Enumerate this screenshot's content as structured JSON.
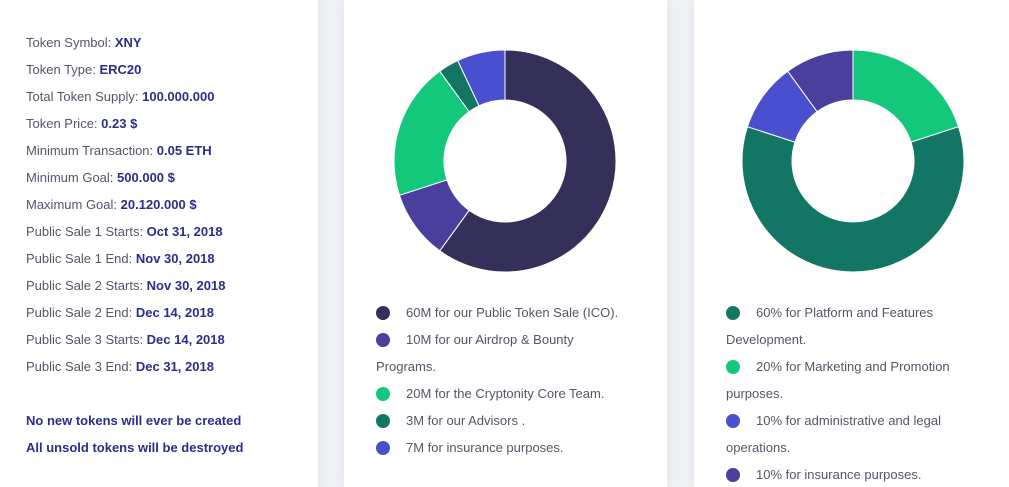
{
  "details": {
    "rows": [
      {
        "label": "Token Symbol: ",
        "value": "XNY"
      },
      {
        "label": "Token Type: ",
        "value": "ERC20"
      },
      {
        "label": "Total Token Supply: ",
        "value": "100.000.000"
      },
      {
        "label": "Token Price: ",
        "value": "0.23 $"
      },
      {
        "label": "Minimum Transaction: ",
        "value": "0.05 ETH"
      },
      {
        "label": "Minimum Goal: ",
        "value": "500.000 $"
      },
      {
        "label": "Maximum Goal: ",
        "value": "20.120.000 $"
      },
      {
        "label": "Public Sale 1 Starts: ",
        "value": "Oct 31, 2018"
      },
      {
        "label": "Public Sale 1 End: ",
        "value": "Nov 30, 2018"
      },
      {
        "label": "Public Sale 2 Starts: ",
        "value": "Nov 30, 2018"
      },
      {
        "label": "Public Sale 2 End: ",
        "value": "Dec 14, 2018"
      },
      {
        "label": "Public Sale 3 Starts: ",
        "value": "Dec 14, 2018"
      },
      {
        "label": "Public Sale 3 End: ",
        "value": "Dec 31, 2018"
      }
    ],
    "notes": [
      "No new tokens will ever be created",
      "All unsold tokens will be destroyed"
    ]
  },
  "distribution": {
    "legend": [
      {
        "line1": "60M for our Public Token Sale (ICO).",
        "line2": "",
        "color": "#34305a"
      },
      {
        "line1": "10M for our Airdrop & Bounty",
        "line2": "Programs.",
        "color": "#4b3f9e"
      },
      {
        "line1": "20M for the Cryptonity Core Team.",
        "line2": "",
        "color": "#13c87b"
      },
      {
        "line1": "3M for our Advisors .",
        "line2": "",
        "color": "#137664"
      },
      {
        "line1": "7M for insurance purposes.",
        "line2": "",
        "color": "#4a4fcf"
      }
    ]
  },
  "funds": {
    "legend": [
      {
        "line1": "60% for Platform and Features",
        "line2": "Development.",
        "color": "#137664"
      },
      {
        "line1": "20% for Marketing and Promotion",
        "line2": "purposes.",
        "color": "#13c87b"
      },
      {
        "line1": "10% for administrative and legal",
        "line2": "operations.",
        "color": "#4a4fcf"
      },
      {
        "line1": "10% for insurance purposes.",
        "line2": "",
        "color": "#4b3f9e"
      }
    ]
  },
  "chart_data": [
    {
      "type": "pie",
      "categories": [
        "Public Token Sale (ICO)",
        "Airdrop & Bounty Programs",
        "Cryptonity Core Team",
        "Advisors",
        "Insurance purposes"
      ],
      "values": [
        60,
        10,
        20,
        3,
        7
      ],
      "colors": [
        "#34305a",
        "#4b3f9e",
        "#13c87b",
        "#137664",
        "#4a4fcf"
      ],
      "donut": true
    },
    {
      "type": "pie",
      "categories": [
        "Platform and Features Development",
        "Marketing and Promotion purposes",
        "Administrative and legal operations",
        "Insurance purposes"
      ],
      "values": [
        60,
        20,
        10,
        10
      ],
      "start_order": [
        1,
        0,
        2,
        3
      ],
      "colors": [
        "#137664",
        "#13c87b",
        "#4a4fcf",
        "#4b3f9e"
      ],
      "donut": true
    }
  ]
}
